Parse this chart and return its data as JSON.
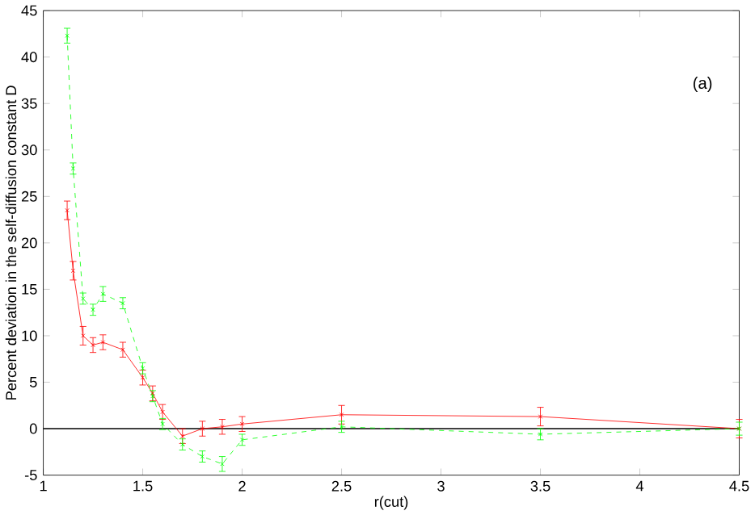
{
  "chart_data": {
    "type": "line",
    "xlabel": "r(cut)",
    "ylabel": "Percent deviation in the self-diffusion constant D",
    "annotations": [
      "(a)"
    ],
    "x": [
      1.12,
      1.15,
      1.2,
      1.25,
      1.3,
      1.4,
      1.5,
      1.55,
      1.6,
      1.7,
      1.8,
      1.9,
      2.0,
      2.5,
      3.5,
      4.5
    ],
    "series": [
      {
        "color": "#ff0000",
        "marker": "cross",
        "line_style": "solid",
        "values": [
          23.5,
          17,
          10,
          9,
          9.3,
          8.5,
          5.5,
          3.8,
          1.8,
          -0.8,
          0,
          0.2,
          0.5,
          1.5,
          1.3,
          0
        ],
        "errors": [
          1,
          1,
          1,
          0.8,
          0.8,
          0.8,
          0.8,
          0.8,
          0.8,
          0.8,
          0.8,
          0.8,
          0.8,
          1,
          1,
          1
        ]
      },
      {
        "color": "#00ff00",
        "marker": "cross",
        "line_style": "dashed",
        "values": [
          42.3,
          28,
          14,
          12.8,
          14.5,
          13.5,
          6.5,
          3.5,
          0.5,
          -1.7,
          -3,
          -3.8,
          -1.2,
          0.2,
          -0.6,
          0
        ],
        "errors": [
          0.8,
          0.6,
          0.6,
          0.6,
          0.8,
          0.6,
          0.6,
          0.6,
          0.6,
          0.6,
          0.6,
          0.8,
          0.6,
          0.6,
          0.6,
          0.7
        ]
      }
    ],
    "ref_lines": [
      {
        "axis": "y",
        "value": 0,
        "color": "#000000"
      }
    ],
    "xlim": [
      1,
      4.5
    ],
    "ylim": [
      -5,
      45
    ],
    "xticks": [
      1,
      1.5,
      2,
      2.5,
      3,
      3.5,
      4,
      4.5
    ],
    "yticks": [
      -5,
      0,
      5,
      10,
      15,
      20,
      25,
      30,
      35,
      40,
      45
    ]
  }
}
